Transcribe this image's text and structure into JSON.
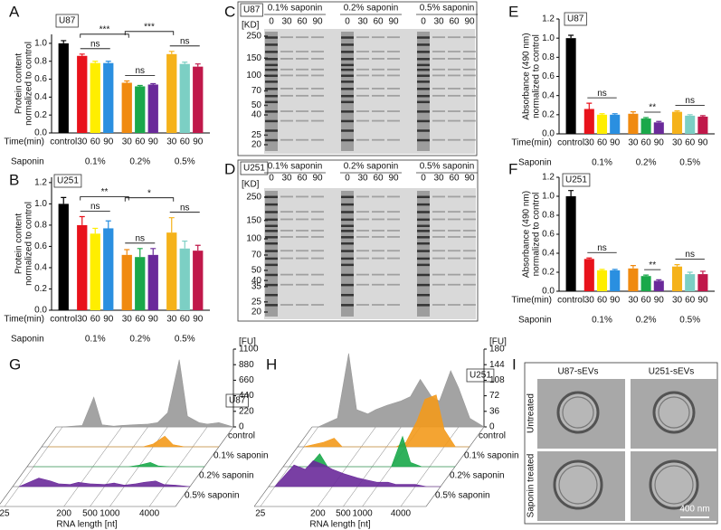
{
  "chart_data": [
    {
      "type": "bar",
      "panel": "A",
      "tag": "U87",
      "y_label": [
        "Protein content",
        "normalized to control"
      ],
      "x_label": "Time(min)",
      "categories": [
        "control",
        "30",
        "60",
        "90",
        "30",
        "60",
        "90",
        "30",
        "60",
        "90"
      ],
      "group_label": "Saponin",
      "groups": [
        "0.1%",
        "0.2%",
        "0.5%"
      ],
      "values": [
        1.0,
        0.86,
        0.78,
        0.78,
        0.56,
        0.52,
        0.54,
        0.88,
        0.77,
        0.74
      ],
      "errors": [
        0.03,
        0.02,
        0.02,
        0.02,
        0.02,
        0.01,
        0.01,
        0.03,
        0.02,
        0.03
      ],
      "colors": [
        "#000000",
        "#e8121b",
        "#ffee00",
        "#2a8fe0",
        "#f08a10",
        "#1aa84a",
        "#6a2a9a",
        "#f5b21a",
        "#7ccfc4",
        "#c0184a"
      ],
      "ylim": [
        0,
        1.1
      ],
      "yticks": [
        {
          "value": 0,
          "label": "0.0"
        },
        {
          "value": 0.2,
          "label": "0.2"
        },
        {
          "value": 0.4,
          "label": "0.4"
        },
        {
          "value": 0.6,
          "label": "0.6"
        },
        {
          "value": 0.8,
          "label": "0.8"
        },
        {
          "value": 1.0,
          "label": "1.0"
        }
      ],
      "annotations": [
        "***",
        "ns",
        "***",
        "ns",
        "ns"
      ]
    },
    {
      "type": "bar",
      "panel": "B",
      "tag": "U251",
      "y_label": [
        "Protein content",
        "normalized to control"
      ],
      "x_label": "Time(min)",
      "categories": [
        "control",
        "30",
        "60",
        "90",
        "30",
        "60",
        "90",
        "30",
        "60",
        "90"
      ],
      "group_label": "Saponin",
      "groups": [
        "0.1%",
        "0.2%",
        "0.5%"
      ],
      "values": [
        1.0,
        0.8,
        0.72,
        0.77,
        0.52,
        0.5,
        0.52,
        0.73,
        0.58,
        0.56
      ],
      "errors": [
        0.06,
        0.08,
        0.05,
        0.07,
        0.05,
        0.08,
        0.06,
        0.14,
        0.07,
        0.05
      ],
      "colors": [
        "#000000",
        "#e8121b",
        "#ffee00",
        "#2a8fe0",
        "#f08a10",
        "#1aa84a",
        "#6a2a9a",
        "#f5b21a",
        "#7ccfc4",
        "#c0184a"
      ],
      "ylim": [
        0,
        1.25
      ],
      "yticks": [
        {
          "value": 0,
          "label": "0.0"
        },
        {
          "value": 0.2,
          "label": "0.2"
        },
        {
          "value": 0.4,
          "label": "0.4"
        },
        {
          "value": 0.6,
          "label": "0.6"
        },
        {
          "value": 0.8,
          "label": "0.8"
        },
        {
          "value": 1.0,
          "label": "1.0"
        },
        {
          "value": 1.2,
          "label": "1.2"
        }
      ],
      "annotations": [
        "**",
        "ns",
        "*",
        "ns",
        "ns"
      ]
    },
    {
      "type": "bar",
      "panel": "E",
      "tag": "U87",
      "y_label": [
        "Absorbance (490 nm)",
        "normalized to control"
      ],
      "x_label": "Time(min)",
      "categories": [
        "control",
        "30",
        "60",
        "90",
        "30",
        "60",
        "90",
        "30",
        "60",
        "90"
      ],
      "group_label": "Saponin",
      "groups": [
        "0.1%",
        "0.2%",
        "0.5%"
      ],
      "values": [
        1.0,
        0.26,
        0.2,
        0.2,
        0.21,
        0.16,
        0.12,
        0.23,
        0.19,
        0.18
      ],
      "errors": [
        0.03,
        0.06,
        0.01,
        0.01,
        0.02,
        0.01,
        0.01,
        0.01,
        0.01,
        0.01
      ],
      "colors": [
        "#000000",
        "#e8121b",
        "#ffee00",
        "#2a8fe0",
        "#f08a10",
        "#1aa84a",
        "#6a2a9a",
        "#f5b21a",
        "#7ccfc4",
        "#c0184a"
      ],
      "ylim": [
        0,
        1.2
      ],
      "yticks": [
        {
          "value": 0,
          "label": "0.0"
        },
        {
          "value": 0.2,
          "label": "0.2"
        },
        {
          "value": 0.4,
          "label": "0.4"
        },
        {
          "value": 0.6,
          "label": "0.6"
        },
        {
          "value": 0.8,
          "label": "0.8"
        },
        {
          "value": 1.0,
          "label": "1.0"
        },
        {
          "value": 1.2,
          "label": "1.2"
        }
      ],
      "annotations": [
        "ns",
        "**",
        "ns"
      ]
    },
    {
      "type": "bar",
      "panel": "F",
      "tag": "U251",
      "y_label": [
        "Absorbance (490 nm)",
        "normalized to control"
      ],
      "x_label": "Time(min)",
      "categories": [
        "control",
        "30",
        "60",
        "90",
        "30",
        "60",
        "90",
        "30",
        "60",
        "90"
      ],
      "group_label": "Saponin",
      "groups": [
        "0.1%",
        "0.2%",
        "0.5%"
      ],
      "values": [
        1.0,
        0.34,
        0.22,
        0.22,
        0.24,
        0.16,
        0.11,
        0.26,
        0.18,
        0.18
      ],
      "errors": [
        0.06,
        0.01,
        0.01,
        0.01,
        0.03,
        0.01,
        0.01,
        0.02,
        0.02,
        0.03
      ],
      "colors": [
        "#000000",
        "#e8121b",
        "#ffee00",
        "#2a8fe0",
        "#f08a10",
        "#1aa84a",
        "#6a2a9a",
        "#f5b21a",
        "#7ccfc4",
        "#c0184a"
      ],
      "ylim": [
        0,
        1.2
      ],
      "yticks": [
        {
          "value": 0,
          "label": "0.0"
        },
        {
          "value": 0.2,
          "label": "0.2"
        },
        {
          "value": 0.4,
          "label": "0.4"
        },
        {
          "value": 0.6,
          "label": "0.6"
        },
        {
          "value": 0.8,
          "label": "0.8"
        },
        {
          "value": 1.0,
          "label": "1.0"
        },
        {
          "value": 1.2,
          "label": "1.2"
        }
      ],
      "annotations": [
        "ns",
        "**",
        "ns"
      ]
    },
    {
      "type": "electropherogram",
      "panel": "G",
      "tag": "U87",
      "x_label": "RNA length [nt]",
      "y_unit": "[FU]",
      "xlog": true,
      "xlim": [
        20,
        10000
      ],
      "xticks": [
        25,
        200,
        500,
        1000,
        4000
      ],
      "x": [
        25,
        50,
        75,
        100,
        150,
        200,
        300,
        500,
        700,
        1000,
        1500,
        2000,
        3000,
        4000,
        6000,
        10000
      ],
      "ylim": [
        0,
        1100
      ],
      "yticks": [
        0,
        220,
        440,
        660,
        880,
        1100
      ],
      "series": [
        {
          "name": "control",
          "color": "#999999",
          "values": [
            0,
            20,
            420,
            30,
            10,
            20,
            30,
            40,
            60,
            200,
            950,
            150,
            60,
            40,
            60,
            0
          ]
        },
        {
          "name": "0.1% saponin",
          "color": "#f39a1c",
          "values": [
            0,
            0,
            0,
            0,
            0,
            0,
            0,
            0,
            0,
            40,
            150,
            30,
            0,
            0,
            0,
            0
          ]
        },
        {
          "name": "0.2% saponin",
          "color": "#1aa84a",
          "values": [
            0,
            0,
            0,
            0,
            0,
            0,
            0,
            0,
            0,
            20,
            60,
            10,
            0,
            0,
            0,
            0
          ]
        },
        {
          "name": "0.5% saponin",
          "color": "#6a2a9a",
          "values": [
            0,
            120,
            80,
            40,
            30,
            60,
            40,
            30,
            50,
            20,
            40,
            60,
            80,
            30,
            20,
            0
          ]
        }
      ]
    },
    {
      "type": "electropherogram",
      "panel": "H",
      "tag": "U251",
      "x_label": "RNA length [nt]",
      "y_unit": "[FU]",
      "xlog": true,
      "xlim": [
        20,
        10000
      ],
      "xticks": [
        25,
        200,
        500,
        1000,
        4000
      ],
      "x": [
        25,
        50,
        75,
        100,
        150,
        200,
        300,
        500,
        700,
        1000,
        1500,
        2000,
        3000,
        4000,
        6000,
        10000
      ],
      "ylim": [
        0,
        180
      ],
      "yticks": [
        0,
        36,
        72,
        108,
        144,
        180
      ],
      "series": [
        {
          "name": "control",
          "color": "#999999",
          "values": [
            0,
            20,
            170,
            40,
            30,
            40,
            50,
            60,
            70,
            110,
            70,
            60,
            130,
            90,
            20,
            0
          ]
        },
        {
          "name": "0.1% saponin",
          "color": "#f39a1c",
          "values": [
            0,
            10,
            20,
            0,
            0,
            0,
            0,
            0,
            0,
            10,
            60,
            110,
            120,
            40,
            0,
            0
          ]
        },
        {
          "name": "0.2% saponin",
          "color": "#1aa84a",
          "values": [
            0,
            0,
            30,
            0,
            0,
            0,
            0,
            0,
            0,
            0,
            70,
            10,
            0,
            0,
            0,
            0
          ]
        },
        {
          "name": "0.5% saponin",
          "color": "#6a2a9a",
          "values": [
            0,
            50,
            40,
            60,
            50,
            40,
            30,
            20,
            15,
            10,
            10,
            5,
            5,
            5,
            0,
            0
          ]
        }
      ]
    }
  ],
  "gels": [
    {
      "panel": "C",
      "tag": "U87",
      "unit": "[KD]",
      "markers": [
        250,
        150,
        100,
        70,
        50,
        40,
        25,
        20
      ],
      "groups": [
        "0.1% saponin",
        "0.2% saponin",
        "0.5% saponin"
      ],
      "lanes": [
        "0",
        "30",
        "60",
        "90"
      ]
    },
    {
      "panel": "D",
      "tag": "U251",
      "unit": "[KD]",
      "markers": [
        250,
        150,
        100,
        70,
        50,
        40,
        35,
        25,
        20
      ],
      "groups": [
        "0.1% saponin",
        "0.2% saponin",
        "0.5% saponin"
      ],
      "lanes": [
        "0",
        "30",
        "60",
        "90"
      ]
    }
  ],
  "em": {
    "panel": "I",
    "columns": [
      "U87-sEVs",
      "U251-sEVs"
    ],
    "rows": [
      "Untreated",
      "Saponin treated"
    ],
    "scale_bar": "400 nm"
  }
}
